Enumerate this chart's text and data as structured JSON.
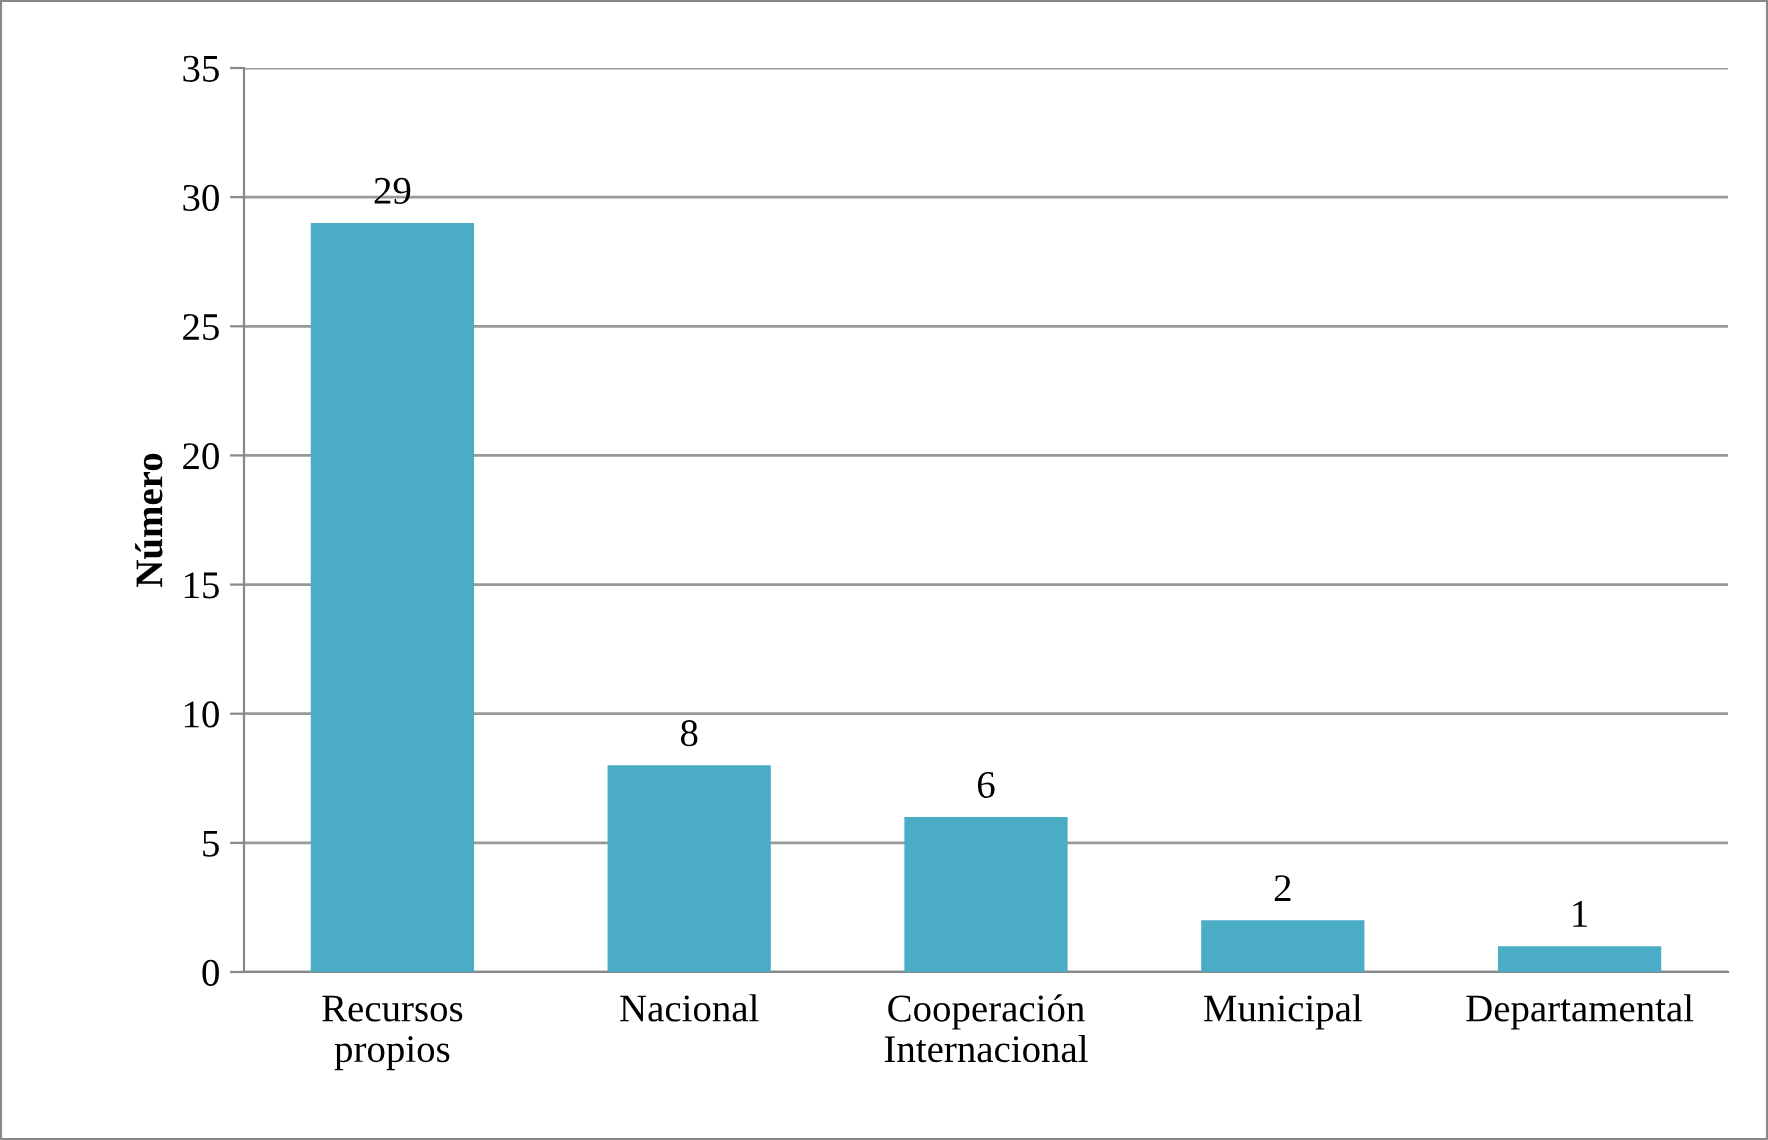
{
  "chart_data": {
    "type": "bar",
    "ylabel": "Número",
    "categories": [
      "Recursos\npropios",
      "Nacional",
      "Cooperación\nInternacional",
      "Municipal",
      "Departamental"
    ],
    "values": [
      29,
      8,
      6,
      2,
      1
    ],
    "color": "#4bacc6",
    "ylim": [
      0,
      35
    ],
    "yticks": [
      0,
      5,
      10,
      15,
      20,
      25,
      30,
      35
    ],
    "grid": "y",
    "data_labels": true
  }
}
